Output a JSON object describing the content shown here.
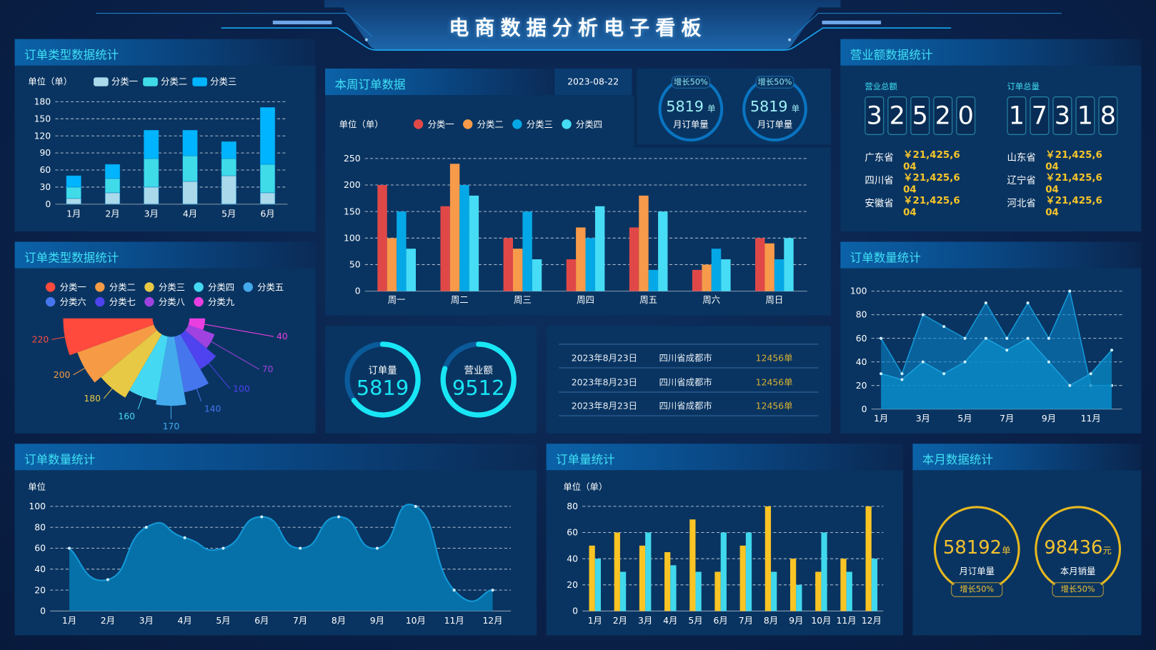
{
  "header": {
    "title": "电商数据分析电子看板"
  },
  "colors": {
    "accent": "#3fe0f5",
    "panel": "#093461",
    "gold": "#f7c52a"
  },
  "panel_order_type_bar": {
    "title": "订单类型数据统计",
    "unit": "单位（单）",
    "legend": [
      "分类一",
      "分类二",
      "分类三"
    ]
  },
  "panel_order_type_rose": {
    "title": "订单类型数据统计",
    "legend": [
      "分类一",
      "分类二",
      "分类三",
      "分类四",
      "分类五",
      "分类六",
      "分类七",
      "分类八",
      "分类九"
    ]
  },
  "panel_week": {
    "title": "本周订单数据",
    "date": "2023-08-22",
    "unit": "单位（单）",
    "legend": [
      "分类一",
      "分类二",
      "分类三",
      "分类四"
    ],
    "circles": [
      {
        "badge": "增长50%",
        "value": "5819",
        "unit": "单",
        "label": "月订单量"
      },
      {
        "badge": "增长50%",
        "value": "5819",
        "unit": "单",
        "label": "月订单量"
      }
    ]
  },
  "panel_donuts": {
    "items": [
      {
        "label": "订单量",
        "value": "5819",
        "progress": 0.65
      },
      {
        "label": "营业额",
        "value": "9512",
        "progress": 0.8
      }
    ]
  },
  "panel_table": {
    "rows": [
      {
        "date": "2023年8月23日",
        "city": "四川省成都市",
        "count": "12456单"
      },
      {
        "date": "2023年8月23日",
        "city": "四川省成都市",
        "count": "12456单"
      },
      {
        "date": "2023年8月23日",
        "city": "四川省成都市",
        "count": "12456单"
      }
    ]
  },
  "panel_revenue": {
    "title": "营业额数据统计",
    "total_revenue_label": "营业总额",
    "total_revenue_digits": [
      "3",
      "2",
      "5",
      "2",
      "0"
    ],
    "total_orders_label": "订单总量",
    "total_orders_digits": [
      "1",
      "7",
      "3",
      "1",
      "8"
    ],
    "provinces_left": [
      {
        "name": "广东省",
        "value": "￥21,425,604"
      },
      {
        "name": "四川省",
        "value": "￥21,425,604"
      },
      {
        "name": "安徽省",
        "value": "￥21,425,604"
      }
    ],
    "provinces_right": [
      {
        "name": "山东省",
        "value": "￥21,425,604"
      },
      {
        "name": "辽宁省",
        "value": "￥21,425,604"
      },
      {
        "name": "河北省",
        "value": "￥21,425,604"
      }
    ]
  },
  "panel_order_count_right": {
    "title": "订单数量统计"
  },
  "panel_order_count_bottom": {
    "title": "订单数量统计",
    "unit": "单位"
  },
  "panel_order_volume": {
    "title": "订单量统计",
    "unit": "单位（单）"
  },
  "panel_month": {
    "title": "本月数据统计",
    "items": [
      {
        "value": "58192",
        "unit": "单",
        "label": "月订单量",
        "badge": "增长50%"
      },
      {
        "value": "98436",
        "unit": "元",
        "label": "本月销量",
        "badge": "增长50%"
      }
    ]
  },
  "chart_data": [
    {
      "id": "stacked",
      "type": "bar",
      "stacked": true,
      "categories": [
        "1月",
        "2月",
        "3月",
        "4月",
        "5月",
        "6月"
      ],
      "ylim": [
        0,
        180
      ],
      "yticks": [
        "0",
        "30",
        "60",
        "90",
        "120",
        "150",
        "180"
      ],
      "grid": true,
      "legend_position": "top",
      "series": [
        {
          "name": "分类一",
          "color": "#a9d9ea",
          "values": [
            10,
            20,
            30,
            40,
            50,
            20
          ]
        },
        {
          "name": "分类二",
          "color": "#40dbe9",
          "values": [
            20,
            25,
            50,
            45,
            30,
            50
          ]
        },
        {
          "name": "分类三",
          "color": "#00b4ff",
          "values": [
            20,
            25,
            50,
            45,
            30,
            100
          ]
        }
      ]
    },
    {
      "id": "rose",
      "type": "pie",
      "rose": true,
      "legend_position": "top",
      "categories": [
        "分类一",
        "分类二",
        "分类三",
        "分类四",
        "分类五",
        "分类六",
        "分类七",
        "分类八",
        "分类九"
      ],
      "values": [
        220,
        200,
        180,
        160,
        170,
        140,
        100,
        70,
        40
      ],
      "labels": [
        "220",
        "200",
        "180",
        "160",
        "170",
        "140",
        "100",
        "70",
        "40"
      ],
      "colors": [
        "#ff4a3d",
        "#f79a45",
        "#e8c945",
        "#44d8f2",
        "#43aaee",
        "#4676ee",
        "#4e43ee",
        "#9f42e0",
        "#ea3fe0"
      ]
    },
    {
      "id": "week",
      "type": "bar",
      "categories": [
        "周一",
        "周二",
        "周三",
        "周四",
        "周五",
        "周六",
        "周日"
      ],
      "ylim": [
        0,
        250
      ],
      "yticks": [
        "0",
        "50",
        "100",
        "150",
        "200",
        "250"
      ],
      "grid": true,
      "legend_position": "top",
      "series": [
        {
          "name": "分类一",
          "color": "#e04848",
          "values": [
            200,
            160,
            100,
            60,
            120,
            40,
            100
          ]
        },
        {
          "name": "分类二",
          "color": "#f79a4a",
          "values": [
            100,
            240,
            80,
            120,
            180,
            50,
            90
          ]
        },
        {
          "name": "分类三",
          "color": "#05a8e6",
          "values": [
            150,
            200,
            150,
            100,
            40,
            80,
            60
          ]
        },
        {
          "name": "分类四",
          "color": "#46dcf5",
          "values": [
            80,
            180,
            60,
            160,
            150,
            60,
            100
          ]
        }
      ]
    },
    {
      "id": "area_right",
      "type": "area",
      "x": [
        "1月",
        "2月",
        "3月",
        "4月",
        "5月",
        "6月",
        "7月",
        "8月",
        "9月",
        "10月",
        "11月",
        "12月"
      ],
      "xticks": [
        "1月",
        "3月",
        "5月",
        "7月",
        "9月",
        "11月"
      ],
      "ylim": [
        0,
        100
      ],
      "yticks": [
        "0",
        "20",
        "40",
        "60",
        "80",
        "100"
      ],
      "grid": true,
      "series": [
        {
          "values": [
            60,
            30,
            80,
            70,
            60,
            90,
            60,
            90,
            60,
            100,
            20,
            20
          ]
        },
        {
          "values": [
            30,
            25,
            40,
            30,
            40,
            60,
            50,
            60,
            40,
            20,
            30,
            50
          ]
        }
      ]
    },
    {
      "id": "area_bottom",
      "type": "area",
      "smooth": true,
      "x": [
        "1月",
        "2月",
        "3月",
        "4月",
        "5月",
        "6月",
        "7月",
        "8月",
        "9月",
        "10月",
        "11月",
        "12月"
      ],
      "ylim": [
        0,
        100
      ],
      "yticks": [
        "0",
        "20",
        "40",
        "60",
        "80",
        "100"
      ],
      "grid": true,
      "series": [
        {
          "values": [
            60,
            30,
            80,
            70,
            60,
            90,
            60,
            90,
            60,
            100,
            20,
            20
          ]
        }
      ]
    },
    {
      "id": "volume",
      "type": "bar",
      "categories": [
        "1月",
        "2月",
        "3月",
        "4月",
        "5月",
        "6月",
        "7月",
        "8月",
        "9月",
        "10月",
        "11月",
        "12月"
      ],
      "ylim": [
        0,
        80
      ],
      "yticks": [
        "0",
        "20",
        "40",
        "60",
        "80"
      ],
      "grid": true,
      "series": [
        {
          "color": "#f9c424",
          "values": [
            50,
            60,
            50,
            45,
            70,
            30,
            50,
            80,
            40,
            30,
            40,
            80
          ]
        },
        {
          "color": "#40d8ec",
          "values": [
            40,
            30,
            60,
            35,
            30,
            60,
            60,
            30,
            20,
            60,
            30,
            40
          ]
        }
      ]
    }
  ]
}
